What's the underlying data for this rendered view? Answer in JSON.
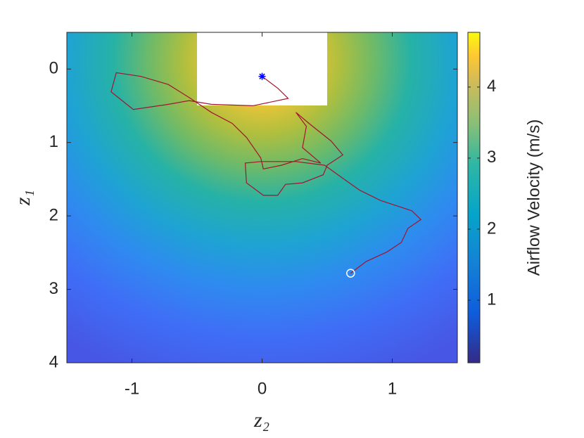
{
  "chart_data": {
    "type": "line",
    "xlabel": "z₂",
    "ylabel": "z₁",
    "x": [
      0,
      0.12,
      0.2,
      -0.07,
      -0.39,
      -0.56,
      -0.72,
      -0.99,
      -1.16,
      -1.12,
      -0.93,
      -0.72,
      -0.55,
      -0.39,
      -0.23,
      -0.12,
      -0.01,
      0.01,
      0.15,
      0.31,
      0.45,
      0.31,
      0.34,
      0.26,
      0.36,
      0.53,
      0.62,
      0.5,
      0.47,
      0.31,
      0.18,
      0.12,
      0.01,
      -0.12,
      -0.13,
      -0.01,
      0.26,
      0.48,
      0.63,
      0.75,
      0.91,
      1.15,
      1.22,
      1.12,
      1.07,
      0.96,
      0.8,
      0.68
    ],
    "values": [
      0.1,
      0.26,
      0.4,
      0.5,
      0.48,
      0.43,
      0.48,
      0.55,
      0.31,
      0.05,
      0.1,
      0.21,
      0.4,
      0.59,
      0.74,
      0.93,
      1.21,
      1.36,
      1.31,
      1.22,
      1.28,
      1.07,
      0.78,
      0.59,
      0.74,
      0.98,
      1.17,
      1.31,
      1.44,
      1.55,
      1.57,
      1.72,
      1.72,
      1.55,
      1.28,
      1.26,
      1.26,
      1.31,
      1.5,
      1.65,
      1.79,
      1.93,
      2.05,
      2.17,
      2.36,
      2.49,
      2.62,
      2.78
    ],
    "color": "#a2142f",
    "start_color": "#0000ff",
    "end_color": "#ffffff",
    "xlim": [
      -1.5,
      1.5
    ],
    "xticks": [
      -1,
      0,
      1
    ],
    "ylim": [
      -0.5,
      4
    ],
    "yticks": [
      0,
      1,
      2,
      3,
      4
    ],
    "y_reversed": true,
    "colorbar": {
      "label": "Airflow Velocity (m/s)",
      "lim": [
        0.12,
        4.77
      ],
      "ticks": [
        1,
        2,
        3,
        4
      ]
    }
  }
}
